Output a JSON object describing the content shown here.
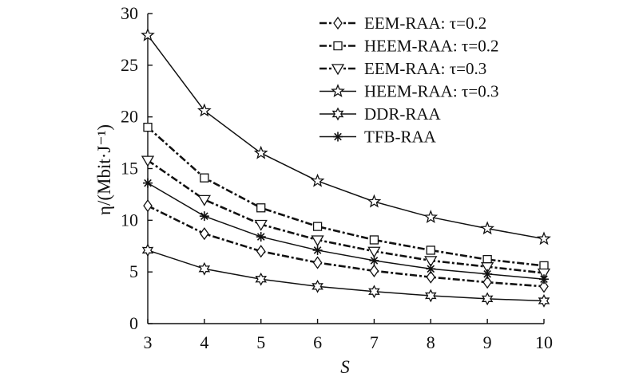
{
  "chart_data": {
    "type": "line",
    "xlabel": "S",
    "ylabel": "η/(Mbit·J⁻¹)",
    "x": [
      3,
      4,
      5,
      6,
      7,
      8,
      9,
      10
    ],
    "xlim": [
      3,
      10
    ],
    "ylim": [
      0,
      30
    ],
    "x_ticks": [
      3,
      4,
      5,
      6,
      7,
      8,
      9,
      10
    ],
    "y_ticks": [
      0,
      5,
      10,
      15,
      20,
      25,
      30
    ],
    "grid": false,
    "legend_position": "top-right",
    "series": [
      {
        "name": "EEM-RAA: τ=0.2",
        "marker": "diamond",
        "dash": "dashdot",
        "color": "#111111",
        "values": [
          11.4,
          8.7,
          7.0,
          5.9,
          5.1,
          4.5,
          4.0,
          3.6
        ]
      },
      {
        "name": "HEEM-RAA: τ=0.2",
        "marker": "square",
        "dash": "dashdot",
        "color": "#111111",
        "values": [
          19.0,
          14.1,
          11.2,
          9.4,
          8.1,
          7.1,
          6.2,
          5.6
        ]
      },
      {
        "name": "EEM-RAA: τ=0.3",
        "marker": "triangle-down",
        "dash": "dashdot",
        "color": "#111111",
        "values": [
          15.8,
          12.0,
          9.6,
          8.1,
          7.0,
          6.1,
          5.5,
          4.9
        ]
      },
      {
        "name": "HEEM-RAA: τ=0.3",
        "marker": "star5",
        "dash": "solid",
        "color": "#111111",
        "values": [
          27.9,
          20.6,
          16.5,
          13.8,
          11.8,
          10.3,
          9.2,
          8.2
        ]
      },
      {
        "name": "DDR-RAA",
        "marker": "star6",
        "dash": "solid",
        "color": "#111111",
        "values": [
          7.1,
          5.3,
          4.3,
          3.6,
          3.1,
          2.7,
          2.4,
          2.2
        ]
      },
      {
        "name": "TFB-RAA",
        "marker": "asterisk",
        "dash": "solid",
        "color": "#111111",
        "values": [
          13.6,
          10.4,
          8.4,
          7.1,
          6.1,
          5.3,
          4.8,
          4.3
        ]
      }
    ]
  }
}
